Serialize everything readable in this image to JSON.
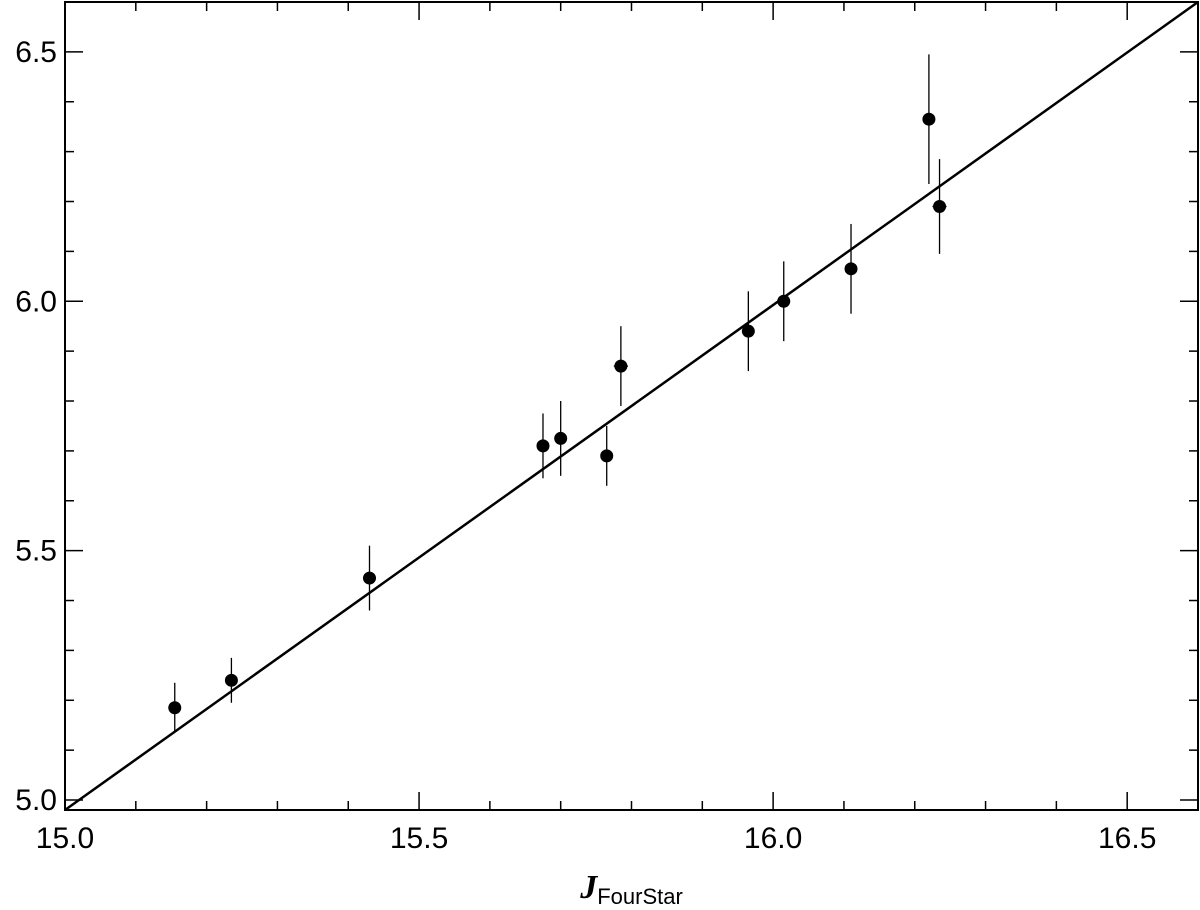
{
  "chart_data": {
    "type": "scatter",
    "xlabel": "J",
    "xlabel_sub": "FourStar",
    "ylabel": "",
    "xlim": [
      15.0,
      16.6
    ],
    "ylim": [
      4.98,
      6.6
    ],
    "x_ticks": [
      15.0,
      15.5,
      16.0,
      16.5
    ],
    "x_tick_labels": [
      "15.0",
      "15.5",
      "16.0",
      "16.5"
    ],
    "x_minor_step": 0.1,
    "y_ticks": [
      5.0,
      5.5,
      6.0,
      6.5
    ],
    "y_tick_labels": [
      "5.0",
      "5.5",
      "6.0",
      "6.5"
    ],
    "y_minor_step": 0.1,
    "grid": false,
    "points": [
      {
        "x": 15.155,
        "y": 5.185,
        "yerr": 0.05,
        "xerr": 0.0
      },
      {
        "x": 15.235,
        "y": 5.24,
        "yerr": 0.045,
        "xerr": 0.0
      },
      {
        "x": 15.43,
        "y": 5.445,
        "yerr": 0.065,
        "xerr": 0.0
      },
      {
        "x": 15.675,
        "y": 5.71,
        "yerr": 0.065,
        "xerr": 0.0
      },
      {
        "x": 15.7,
        "y": 5.725,
        "yerr": 0.075,
        "xerr": 0.0
      },
      {
        "x": 15.765,
        "y": 5.69,
        "yerr": 0.06,
        "xerr": 0.0
      },
      {
        "x": 15.785,
        "y": 5.87,
        "yerr": 0.08,
        "xerr": 0.01
      },
      {
        "x": 15.965,
        "y": 5.94,
        "yerr": 0.08,
        "xerr": 0.0
      },
      {
        "x": 16.015,
        "y": 6.0,
        "yerr": 0.08,
        "xerr": 0.0
      },
      {
        "x": 16.11,
        "y": 6.065,
        "yerr": 0.09,
        "xerr": 0.0
      },
      {
        "x": 16.22,
        "y": 6.365,
        "yerr": 0.13,
        "xerr": 0.0
      },
      {
        "x": 16.235,
        "y": 6.19,
        "yerr": 0.095,
        "xerr": 0.01
      }
    ],
    "fit_line": {
      "x": [
        15.0,
        16.6
      ],
      "y": [
        4.98,
        6.6
      ]
    }
  }
}
